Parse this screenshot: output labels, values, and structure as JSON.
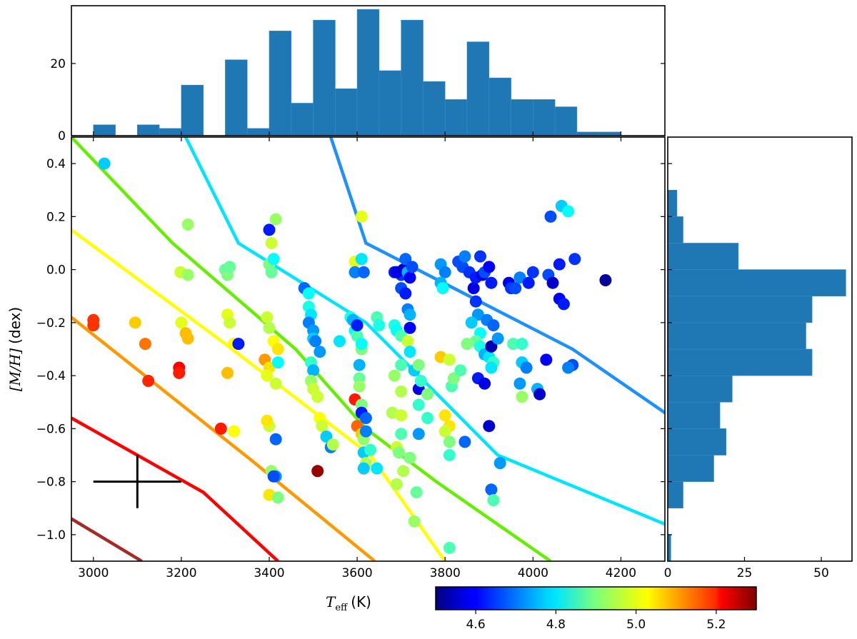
{
  "chart_data": [
    {
      "name": "main-scatter",
      "type": "scatter",
      "xlabel_math": "T",
      "xlabel_sub": "eff",
      "xlabel_unit": "(K)",
      "ylabel_math": "[M/H]",
      "ylabel_unit": "(dex)",
      "xlim": [
        2950,
        4300
      ],
      "ylim": [
        -1.1,
        0.5
      ],
      "xticks": [
        3000,
        3200,
        3400,
        3600,
        3800,
        4000,
        4200
      ],
      "xtick_labels": [
        "3000",
        "3200",
        "3400",
        "3600",
        "3800",
        "4000",
        "4200"
      ],
      "yticks": [
        0.4,
        0.2,
        0.0,
        -0.2,
        -0.4,
        -0.6,
        -0.8,
        -1.0
      ],
      "ytick_labels": [
        "0.4",
        "0.2",
        "0.0",
        "−0.2",
        "−0.4",
        "−0.6",
        "−0.8",
        "−1.0"
      ],
      "colorbar": {
        "range": [
          4.5,
          5.3
        ],
        "ticks": [
          4.6,
          4.8,
          5.0,
          5.2
        ],
        "tick_labels": [
          "4.6",
          "4.8",
          "5.0",
          "5.2"
        ],
        "colormap": "jet"
      },
      "error_bar": {
        "x": 3100,
        "y": -0.8,
        "xerr": 100,
        "yerr": 0.1
      },
      "isolines": [
        {
          "color": "#1e90ff",
          "points": [
            [
              3540,
              0.5
            ],
            [
              3620,
              0.1
            ],
            [
              4090,
              -0.3
            ],
            [
              4300,
              -0.54
            ]
          ]
        },
        {
          "color": "#00e5ff",
          "points": [
            [
              3210,
              0.5
            ],
            [
              3330,
              0.1
            ],
            [
              3620,
              -0.2
            ],
            [
              3920,
              -0.7
            ],
            [
              4300,
              -0.96
            ]
          ]
        },
        {
          "color": "#66ee00",
          "points": [
            [
              2950,
              0.5
            ],
            [
              3180,
              0.1
            ],
            [
              3460,
              -0.3
            ],
            [
              3620,
              -0.6
            ],
            [
              3780,
              -0.8
            ],
            [
              4040,
              -1.1
            ]
          ]
        },
        {
          "color": "#ffff00",
          "points": [
            [
              2950,
              0.15
            ],
            [
              3300,
              -0.28
            ],
            [
              3630,
              -0.7
            ],
            [
              3800,
              -1.1
            ]
          ]
        },
        {
          "color": "#ff9900",
          "points": [
            [
              2950,
              -0.18
            ],
            [
              3360,
              -0.72
            ],
            [
              3640,
              -1.1
            ]
          ]
        },
        {
          "color": "#ff0000",
          "points": [
            [
              2950,
              -0.56
            ],
            [
              3250,
              -0.84
            ],
            [
              3420,
              -1.1
            ]
          ]
        },
        {
          "color": "#a52a2a",
          "points": [
            [
              2950,
              -0.94
            ],
            [
              3110,
              -1.1
            ]
          ]
        }
      ],
      "points": [
        [
          3025,
          0.4,
          4.76
        ],
        [
          3000,
          -0.19,
          5.16
        ],
        [
          3000,
          -0.21,
          5.16
        ],
        [
          3095,
          -0.2,
          5.04
        ],
        [
          3118,
          -0.28,
          5.11
        ],
        [
          3125,
          -0.42,
          5.17
        ],
        [
          3195,
          -0.37,
          5.2
        ],
        [
          3195,
          -0.39,
          5.18
        ],
        [
          3198,
          -0.01,
          4.96
        ],
        [
          3200,
          -0.2,
          4.98
        ],
        [
          3210,
          -0.24,
          5.05
        ],
        [
          3215,
          -0.26,
          5.05
        ],
        [
          3215,
          0.17,
          4.92
        ],
        [
          3215,
          -0.02,
          4.92
        ],
        [
          3290,
          -0.6,
          5.18
        ],
        [
          3300,
          0.0,
          4.88
        ],
        [
          3305,
          -0.02,
          4.9
        ],
        [
          3310,
          0.01,
          4.88
        ],
        [
          3305,
          -0.17,
          4.98
        ],
        [
          3310,
          -0.2,
          4.96
        ],
        [
          3305,
          -0.39,
          5.05
        ],
        [
          3320,
          -0.61,
          5.0
        ],
        [
          3320,
          -0.28,
          5.0
        ],
        [
          3330,
          -0.28,
          4.62
        ],
        [
          3400,
          0.15,
          4.62
        ],
        [
          3405,
          0.1,
          4.96
        ],
        [
          3400,
          0.02,
          4.9
        ],
        [
          3405,
          -0.01,
          4.88
        ],
        [
          3410,
          0.04,
          4.8
        ],
        [
          3415,
          0.19,
          4.92
        ],
        [
          3395,
          -0.18,
          4.96
        ],
        [
          3400,
          -0.22,
          4.94
        ],
        [
          3410,
          -0.27,
          5.0
        ],
        [
          3420,
          -0.3,
          5.02
        ],
        [
          3390,
          -0.34,
          5.08
        ],
        [
          3400,
          -0.37,
          5.02
        ],
        [
          3395,
          -0.4,
          4.98
        ],
        [
          3415,
          -0.43,
          4.96
        ],
        [
          3420,
          -0.35,
          4.8
        ],
        [
          3400,
          -0.59,
          4.96
        ],
        [
          3395,
          -0.57,
          5.02
        ],
        [
          3415,
          -0.64,
          4.68
        ],
        [
          3405,
          -0.76,
          4.92
        ],
        [
          3415,
          -0.78,
          4.72
        ],
        [
          3410,
          -0.78,
          4.66
        ],
        [
          3400,
          -0.85,
          5.02
        ],
        [
          3420,
          -0.86,
          4.9
        ],
        [
          3480,
          -0.07,
          4.68
        ],
        [
          3490,
          -0.09,
          4.8
        ],
        [
          3490,
          -0.14,
          4.82
        ],
        [
          3495,
          -0.17,
          4.78
        ],
        [
          3490,
          -0.2,
          4.7
        ],
        [
          3500,
          -0.23,
          4.72
        ],
        [
          3500,
          -0.26,
          4.76
        ],
        [
          3505,
          -0.27,
          4.7
        ],
        [
          3515,
          -0.31,
          4.72
        ],
        [
          3495,
          -0.35,
          4.84
        ],
        [
          3500,
          -0.38,
          4.74
        ],
        [
          3495,
          -0.42,
          4.92
        ],
        [
          3500,
          -0.45,
          4.96
        ],
        [
          3510,
          -0.48,
          4.96
        ],
        [
          3510,
          -0.76,
          5.28
        ],
        [
          3515,
          -0.56,
          5.0
        ],
        [
          3520,
          -0.59,
          4.96
        ],
        [
          3530,
          -0.63,
          4.76
        ],
        [
          3540,
          -0.67,
          4.7
        ],
        [
          3545,
          -0.66,
          4.94
        ],
        [
          3560,
          -0.27,
          4.78
        ],
        [
          3585,
          -0.18,
          4.82
        ],
        [
          3590,
          -0.19,
          4.74
        ],
        [
          3595,
          -0.23,
          4.8
        ],
        [
          3600,
          -0.25,
          4.86
        ],
        [
          3600,
          -0.21,
          4.62
        ],
        [
          3610,
          -0.3,
          4.9
        ],
        [
          3610,
          -0.28,
          4.8
        ],
        [
          3605,
          -0.36,
          4.74
        ],
        [
          3605,
          -0.41,
          4.88
        ],
        [
          3605,
          -0.44,
          4.92
        ],
        [
          3595,
          -0.49,
          5.18
        ],
        [
          3610,
          -0.51,
          4.9
        ],
        [
          3610,
          -0.54,
          4.62
        ],
        [
          3620,
          -0.56,
          4.68
        ],
        [
          3600,
          -0.59,
          5.12
        ],
        [
          3610,
          -0.62,
          5.04
        ],
        [
          3615,
          -0.64,
          4.92
        ],
        [
          3620,
          -0.61,
          4.7
        ],
        [
          3615,
          -0.69,
          4.76
        ],
        [
          3620,
          -0.73,
          4.94
        ],
        [
          3615,
          -0.75,
          4.76
        ],
        [
          3630,
          -0.68,
          4.84
        ],
        [
          3645,
          -0.75,
          4.78
        ],
        [
          3610,
          0.2,
          4.98
        ],
        [
          3595,
          0.03,
          4.98
        ],
        [
          3595,
          -0.01,
          4.7
        ],
        [
          3610,
          0.04,
          4.78
        ],
        [
          3615,
          -0.01,
          4.68
        ],
        [
          3645,
          -0.18,
          4.86
        ],
        [
          3650,
          -0.21,
          4.82
        ],
        [
          3685,
          -0.01,
          4.62
        ],
        [
          3700,
          -0.02,
          4.64
        ],
        [
          3690,
          -0.01,
          4.58
        ],
        [
          3705,
          0.0,
          4.56
        ],
        [
          3710,
          0.04,
          4.68
        ],
        [
          3715,
          -0.01,
          4.74
        ],
        [
          3700,
          -0.07,
          4.66
        ],
        [
          3710,
          -0.09,
          4.62
        ],
        [
          3720,
          -0.03,
          4.6
        ],
        [
          3725,
          0.01,
          4.66
        ],
        [
          3715,
          -0.15,
          4.7
        ],
        [
          3720,
          -0.17,
          4.74
        ],
        [
          3685,
          -0.21,
          4.82
        ],
        [
          3690,
          -0.23,
          4.8
        ],
        [
          3700,
          -0.25,
          4.86
        ],
        [
          3715,
          -0.27,
          4.96
        ],
        [
          3720,
          -0.22,
          4.6
        ],
        [
          3720,
          -0.31,
          4.78
        ],
        [
          3700,
          -0.36,
          4.86
        ],
        [
          3685,
          -0.4,
          4.92
        ],
        [
          3700,
          -0.46,
          4.94
        ],
        [
          3740,
          -0.45,
          4.58
        ],
        [
          3730,
          -0.38,
          4.76
        ],
        [
          3740,
          -0.36,
          4.9
        ],
        [
          3745,
          -0.42,
          4.84
        ],
        [
          3760,
          -0.47,
          4.9
        ],
        [
          3680,
          -0.54,
          4.94
        ],
        [
          3700,
          -0.55,
          4.96
        ],
        [
          3700,
          -0.62,
          4.86
        ],
        [
          3690,
          -0.67,
          4.96
        ],
        [
          3695,
          -0.69,
          4.9
        ],
        [
          3720,
          -0.71,
          4.9
        ],
        [
          3705,
          -0.76,
          4.94
        ],
        [
          3690,
          -0.81,
          4.94
        ],
        [
          3735,
          -0.84,
          4.88
        ],
        [
          3730,
          -0.95,
          4.92
        ],
        [
          3740,
          -0.62,
          4.72
        ],
        [
          3760,
          -0.56,
          4.84
        ],
        [
          3740,
          -0.51,
          4.84
        ],
        [
          3790,
          -0.33,
          5.04
        ],
        [
          3810,
          -0.34,
          4.96
        ],
        [
          3800,
          -0.55,
          5.02
        ],
        [
          3810,
          -0.59,
          5.02
        ],
        [
          3800,
          -0.61,
          4.96
        ],
        [
          3810,
          -0.65,
          4.9
        ],
        [
          3810,
          -0.7,
          4.84
        ],
        [
          3810,
          -1.05,
          4.86
        ],
        [
          3815,
          -0.44,
          4.86
        ],
        [
          3820,
          -0.41,
          4.9
        ],
        [
          3835,
          -0.38,
          4.86
        ],
        [
          3845,
          -0.65,
          4.68
        ],
        [
          3790,
          0.02,
          4.72
        ],
        [
          3800,
          -0.01,
          4.7
        ],
        [
          3790,
          -0.05,
          4.74
        ],
        [
          3795,
          -0.07,
          4.8
        ],
        [
          3830,
          0.03,
          4.66
        ],
        [
          3840,
          0.01,
          4.66
        ],
        [
          3845,
          0.05,
          4.7
        ],
        [
          3855,
          -0.01,
          4.64
        ],
        [
          3865,
          -0.07,
          4.58
        ],
        [
          3870,
          -0.03,
          4.62
        ],
        [
          3880,
          0.05,
          4.64
        ],
        [
          3885,
          -0.02,
          4.58
        ],
        [
          3890,
          -0.01,
          4.66
        ],
        [
          3900,
          0.01,
          4.6
        ],
        [
          3905,
          -0.05,
          4.62
        ],
        [
          3870,
          -0.12,
          4.64
        ],
        [
          3875,
          -0.17,
          4.72
        ],
        [
          3860,
          -0.2,
          4.76
        ],
        [
          3880,
          -0.24,
          4.8
        ],
        [
          3870,
          -0.27,
          4.88
        ],
        [
          3880,
          -0.29,
          4.82
        ],
        [
          3890,
          -0.32,
          4.74
        ],
        [
          3900,
          -0.33,
          4.78
        ],
        [
          3895,
          -0.19,
          4.7
        ],
        [
          3910,
          -0.21,
          4.68
        ],
        [
          3905,
          -0.29,
          4.54
        ],
        [
          3920,
          -0.26,
          4.72
        ],
        [
          3875,
          -0.41,
          4.62
        ],
        [
          3890,
          -0.43,
          4.58
        ],
        [
          3850,
          -0.28,
          4.9
        ],
        [
          3910,
          -0.35,
          4.84
        ],
        [
          3905,
          -0.37,
          4.78
        ],
        [
          3900,
          -0.59,
          4.56
        ],
        [
          3905,
          -0.83,
          4.68
        ],
        [
          3910,
          -0.87,
          4.86
        ],
        [
          3925,
          -0.73,
          4.72
        ],
        [
          3945,
          -0.05,
          4.58
        ],
        [
          3950,
          -0.07,
          4.64
        ],
        [
          3960,
          -0.07,
          4.66
        ],
        [
          3970,
          -0.03,
          4.7
        ],
        [
          3990,
          -0.05,
          4.62
        ],
        [
          4000,
          -0.01,
          4.64
        ],
        [
          3955,
          -0.28,
          4.86
        ],
        [
          3975,
          -0.28,
          4.84
        ],
        [
          3975,
          -0.35,
          4.76
        ],
        [
          3985,
          -0.37,
          4.7
        ],
        [
          3970,
          -0.43,
          4.72
        ],
        [
          3975,
          -0.48,
          4.92
        ],
        [
          4010,
          -0.45,
          4.74
        ],
        [
          4015,
          -0.47,
          4.56
        ],
        [
          4030,
          -0.34,
          4.6
        ],
        [
          4035,
          -0.02,
          4.66
        ],
        [
          4040,
          0.2,
          4.66
        ],
        [
          4060,
          0.02,
          4.62
        ],
        [
          4065,
          0.24,
          4.76
        ],
        [
          4080,
          0.22,
          4.8
        ],
        [
          4045,
          -0.05,
          4.56
        ],
        [
          4060,
          -0.11,
          4.6
        ],
        [
          4070,
          -0.13,
          4.62
        ],
        [
          4090,
          -0.36,
          4.66
        ],
        [
          4080,
          -0.37,
          4.7
        ],
        [
          4095,
          0.04,
          4.64
        ],
        [
          4165,
          -0.04,
          4.52
        ]
      ]
    },
    {
      "name": "top-histogram",
      "type": "bar",
      "bin_edges_start": 3000,
      "bin_width": 50,
      "values": [
        3,
        0,
        3,
        2,
        14,
        0,
        21,
        2,
        29,
        9,
        32,
        13,
        35,
        18,
        32,
        15,
        10,
        26,
        16,
        10,
        10,
        8,
        1,
        1
      ],
      "ylim": [
        0,
        36
      ],
      "yticks": [
        0,
        20
      ],
      "ytick_labels": [
        "0",
        "20"
      ],
      "color": "#1f77b4"
    },
    {
      "name": "right-histogram",
      "type": "bar",
      "orientation": "horizontal",
      "bin_edges_start": -1.1,
      "bin_width": 0.1,
      "values": [
        1,
        0,
        5,
        15,
        19,
        17,
        21,
        47,
        45,
        47,
        58,
        23,
        5,
        3,
        0,
        0
      ],
      "xlim": [
        0,
        60
      ],
      "xticks": [
        0,
        25,
        50
      ],
      "xtick_labels": [
        "0",
        "25",
        "50"
      ],
      "color": "#1f77b4"
    }
  ]
}
